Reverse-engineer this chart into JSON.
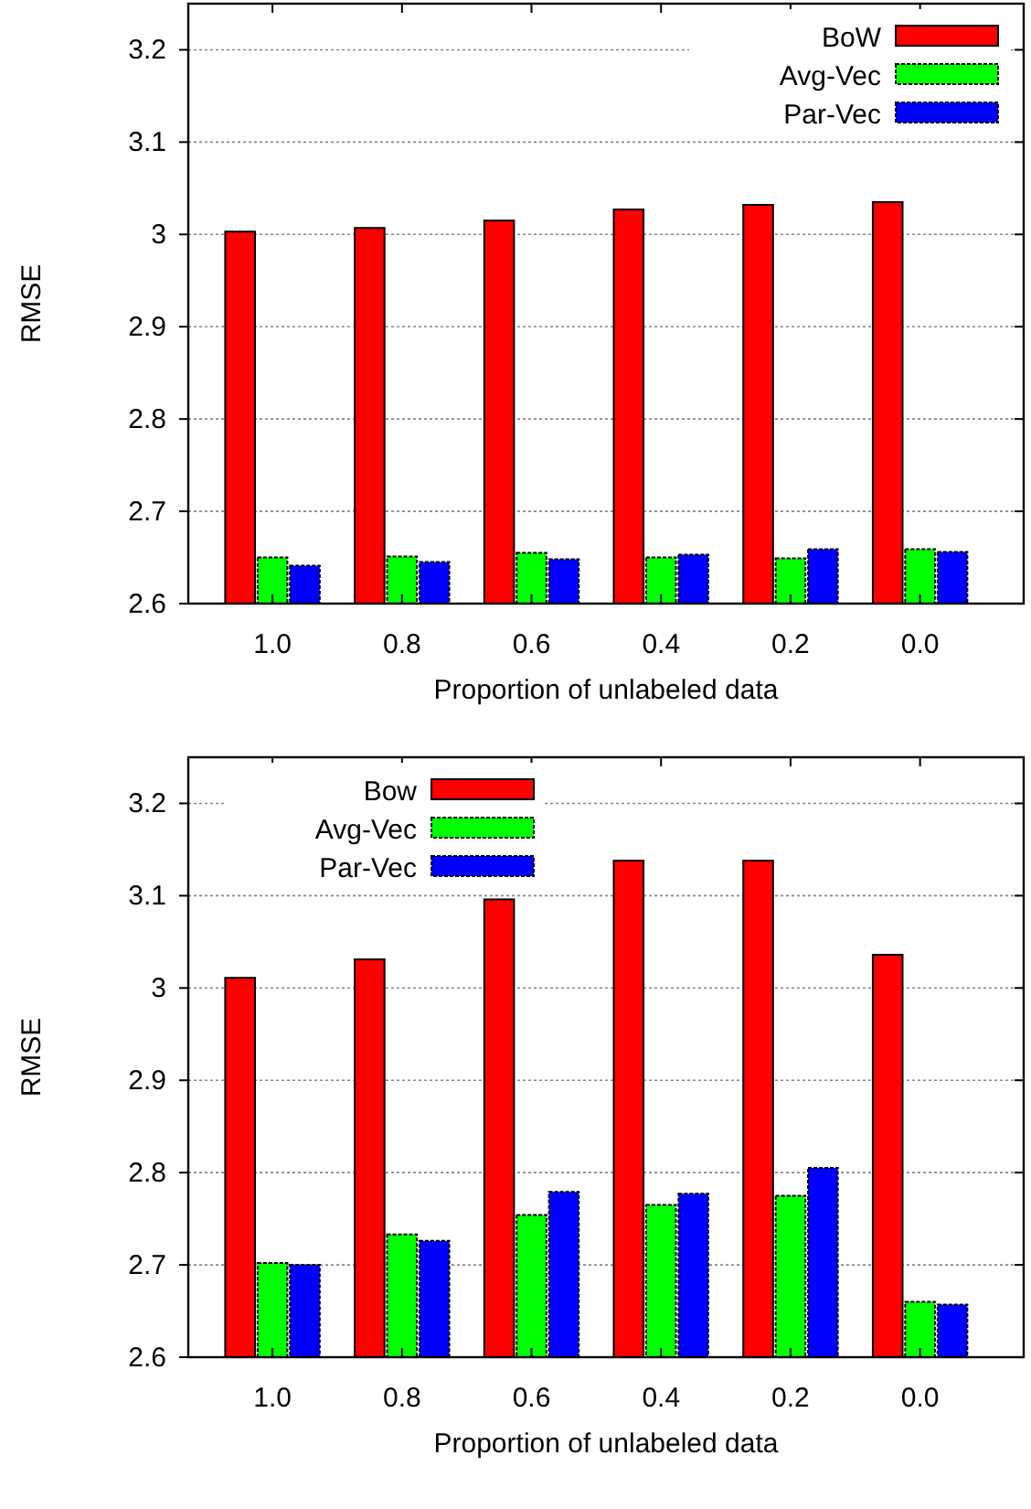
{
  "chart_data": [
    {
      "type": "bar",
      "xlabel": "Proportion of unlabeled data",
      "ylabel": "RMSE",
      "categories": [
        "1.0",
        "0.8",
        "0.6",
        "0.4",
        "0.2",
        "0.0"
      ],
      "series": [
        {
          "name": "BoW",
          "color": "#ff0000",
          "values": [
            3.003,
            3.007,
            3.015,
            3.027,
            3.032,
            3.035
          ]
        },
        {
          "name": "Avg-Vec",
          "color": "#00ff00",
          "values": [
            2.65,
            2.651,
            2.655,
            2.65,
            2.649,
            2.659
          ]
        },
        {
          "name": "Par-Vec",
          "color": "#0000ff",
          "values": [
            2.641,
            2.645,
            2.648,
            2.653,
            2.659,
            2.656
          ]
        }
      ],
      "ylim": [
        2.6,
        3.25
      ],
      "yticks": [
        2.6,
        2.7,
        2.8,
        2.9,
        3,
        3.1,
        3.2
      ],
      "grid": "y",
      "legend": "top right"
    },
    {
      "type": "bar",
      "xlabel": "Proportion of unlabeled data",
      "ylabel": "RMSE",
      "categories": [
        "1.0",
        "0.8",
        "0.6",
        "0.4",
        "0.2",
        "0.0"
      ],
      "series": [
        {
          "name": "Bow",
          "color": "#ff0000",
          "values": [
            3.011,
            3.031,
            3.096,
            3.138,
            3.138,
            3.036
          ]
        },
        {
          "name": "Avg-Vec",
          "color": "#00ff00",
          "values": [
            2.702,
            2.733,
            2.754,
            2.765,
            2.775,
            2.66
          ]
        },
        {
          "name": "Par-Vec",
          "color": "#0000ff",
          "values": [
            2.7,
            2.726,
            2.779,
            2.777,
            2.805,
            2.657
          ]
        }
      ],
      "ylim": [
        2.6,
        3.25
      ],
      "yticks": [
        2.6,
        2.7,
        2.8,
        2.9,
        3,
        3.1,
        3.2
      ],
      "grid": "y",
      "legend": "top left"
    }
  ]
}
